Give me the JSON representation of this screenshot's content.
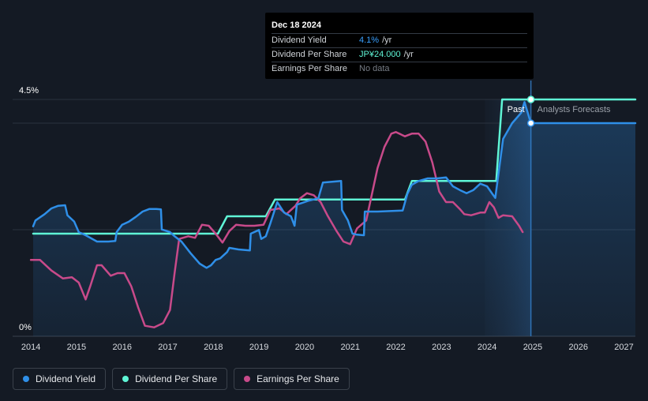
{
  "tooltip": {
    "date": "Dec 18 2024",
    "rows": [
      {
        "label": "Dividend Yield",
        "value": "4.1%",
        "suffix": "/yr"
      },
      {
        "label": "Dividend Per Share",
        "value": "JP¥24.000",
        "suffix": "/yr"
      },
      {
        "label": "Earnings Per Share",
        "value": "No data",
        "suffix": ""
      }
    ]
  },
  "chart_data": {
    "type": "line",
    "y_ticks": [
      "4.5%",
      "0%"
    ],
    "ylim": [
      0,
      4.5
    ],
    "xlim": [
      2013.6,
      2027.25
    ],
    "x_ticks": [
      "2014",
      "2015",
      "2016",
      "2017",
      "2018",
      "2019",
      "2020",
      "2021",
      "2022",
      "2023",
      "2024",
      "2025",
      "2026",
      "2027"
    ],
    "past_label": "Past",
    "forecast_label": "Analysts Forecasts",
    "divider_x": 2024.96,
    "series": [
      {
        "name": "Dividend Yield",
        "color": "#2f8fe8",
        "points": [
          [
            2014.05,
            2.09
          ],
          [
            2014.1,
            2.2
          ],
          [
            2014.3,
            2.32
          ],
          [
            2014.45,
            2.43
          ],
          [
            2014.6,
            2.48
          ],
          [
            2014.75,
            2.49
          ],
          [
            2014.8,
            2.3
          ],
          [
            2014.95,
            2.18
          ],
          [
            2015.05,
            1.98
          ],
          [
            2015.2,
            1.92
          ],
          [
            2015.45,
            1.8
          ],
          [
            2015.7,
            1.8
          ],
          [
            2015.85,
            1.81
          ],
          [
            2015.88,
            1.98
          ],
          [
            2016.0,
            2.12
          ],
          [
            2016.15,
            2.18
          ],
          [
            2016.3,
            2.27
          ],
          [
            2016.45,
            2.37
          ],
          [
            2016.6,
            2.42
          ],
          [
            2016.75,
            2.42
          ],
          [
            2016.85,
            2.41
          ],
          [
            2016.87,
            2.03
          ],
          [
            2017.05,
            1.98
          ],
          [
            2017.15,
            1.9
          ],
          [
            2017.3,
            1.8
          ],
          [
            2017.5,
            1.58
          ],
          [
            2017.7,
            1.38
          ],
          [
            2017.85,
            1.3
          ],
          [
            2017.95,
            1.35
          ],
          [
            2018.05,
            1.45
          ],
          [
            2018.15,
            1.48
          ],
          [
            2018.3,
            1.6
          ],
          [
            2018.35,
            1.68
          ],
          [
            2018.55,
            1.65
          ],
          [
            2018.8,
            1.63
          ],
          [
            2018.82,
            1.95
          ],
          [
            2019.0,
            2.02
          ],
          [
            2019.05,
            1.85
          ],
          [
            2019.15,
            1.9
          ],
          [
            2019.25,
            2.15
          ],
          [
            2019.4,
            2.55
          ],
          [
            2019.55,
            2.35
          ],
          [
            2019.7,
            2.28
          ],
          [
            2019.78,
            2.1
          ],
          [
            2019.83,
            2.5
          ],
          [
            2020.1,
            2.58
          ],
          [
            2020.3,
            2.62
          ],
          [
            2020.4,
            2.92
          ],
          [
            2020.8,
            2.95
          ],
          [
            2020.82,
            2.4
          ],
          [
            2020.95,
            2.2
          ],
          [
            2021.05,
            1.95
          ],
          [
            2021.15,
            1.93
          ],
          [
            2021.3,
            1.92
          ],
          [
            2021.32,
            2.37
          ],
          [
            2021.6,
            2.37
          ],
          [
            2022.15,
            2.39
          ],
          [
            2022.25,
            2.7
          ],
          [
            2022.35,
            2.88
          ],
          [
            2022.5,
            2.95
          ],
          [
            2022.7,
            3.0
          ],
          [
            2022.9,
            3.0
          ],
          [
            2023.1,
            3.02
          ],
          [
            2023.25,
            2.85
          ],
          [
            2023.4,
            2.78
          ],
          [
            2023.55,
            2.72
          ],
          [
            2023.7,
            2.78
          ],
          [
            2023.85,
            2.9
          ],
          [
            2024.0,
            2.85
          ],
          [
            2024.12,
            2.7
          ],
          [
            2024.18,
            2.63
          ],
          [
            2024.35,
            3.75
          ],
          [
            2024.55,
            4.05
          ],
          [
            2024.75,
            4.25
          ],
          [
            2024.82,
            4.45
          ],
          [
            2024.96,
            4.05
          ],
          [
            2025.1,
            4.05
          ],
          [
            2027.25,
            4.05
          ]
        ]
      },
      {
        "name": "Dividend Per Share",
        "color": "#5ff5d6",
        "points": [
          [
            2014.05,
            1.95
          ],
          [
            2018.1,
            1.95
          ],
          [
            2018.3,
            2.28
          ],
          [
            2019.15,
            2.28
          ],
          [
            2019.35,
            2.6
          ],
          [
            2022.2,
            2.6
          ],
          [
            2022.35,
            2.95
          ],
          [
            2024.2,
            2.95
          ],
          [
            2024.33,
            4.5
          ],
          [
            2027.25,
            4.5
          ]
        ]
      },
      {
        "name": "Earnings Per Share",
        "color": "#c84a8a",
        "points": [
          [
            2014.0,
            1.45
          ],
          [
            2014.2,
            1.45
          ],
          [
            2014.45,
            1.25
          ],
          [
            2014.7,
            1.1
          ],
          [
            2014.9,
            1.12
          ],
          [
            2015.05,
            1.02
          ],
          [
            2015.2,
            0.7
          ],
          [
            2015.3,
            0.95
          ],
          [
            2015.45,
            1.35
          ],
          [
            2015.55,
            1.35
          ],
          [
            2015.75,
            1.15
          ],
          [
            2015.9,
            1.2
          ],
          [
            2016.05,
            1.2
          ],
          [
            2016.2,
            0.95
          ],
          [
            2016.35,
            0.55
          ],
          [
            2016.5,
            0.2
          ],
          [
            2016.7,
            0.17
          ],
          [
            2016.9,
            0.25
          ],
          [
            2017.05,
            0.5
          ],
          [
            2017.15,
            1.2
          ],
          [
            2017.25,
            1.85
          ],
          [
            2017.45,
            1.9
          ],
          [
            2017.6,
            1.87
          ],
          [
            2017.75,
            2.12
          ],
          [
            2017.9,
            2.1
          ],
          [
            2018.05,
            1.95
          ],
          [
            2018.2,
            1.78
          ],
          [
            2018.35,
            2.0
          ],
          [
            2018.5,
            2.12
          ],
          [
            2018.7,
            2.1
          ],
          [
            2018.9,
            2.1
          ],
          [
            2019.1,
            2.12
          ],
          [
            2019.25,
            2.4
          ],
          [
            2019.45,
            2.43
          ],
          [
            2019.6,
            2.32
          ],
          [
            2019.8,
            2.48
          ],
          [
            2019.9,
            2.62
          ],
          [
            2020.05,
            2.72
          ],
          [
            2020.2,
            2.68
          ],
          [
            2020.35,
            2.55
          ],
          [
            2020.5,
            2.3
          ],
          [
            2020.7,
            2.0
          ],
          [
            2020.85,
            1.8
          ],
          [
            2021.0,
            1.75
          ],
          [
            2021.15,
            2.05
          ],
          [
            2021.35,
            2.2
          ],
          [
            2021.6,
            3.2
          ],
          [
            2021.75,
            3.6
          ],
          [
            2021.9,
            3.85
          ],
          [
            2022.0,
            3.88
          ],
          [
            2022.2,
            3.8
          ],
          [
            2022.35,
            3.85
          ],
          [
            2022.5,
            3.85
          ],
          [
            2022.65,
            3.7
          ],
          [
            2022.8,
            3.3
          ],
          [
            2022.95,
            2.75
          ],
          [
            2023.1,
            2.55
          ],
          [
            2023.25,
            2.55
          ],
          [
            2023.4,
            2.42
          ],
          [
            2023.5,
            2.32
          ],
          [
            2023.65,
            2.3
          ],
          [
            2023.85,
            2.35
          ],
          [
            2023.95,
            2.35
          ],
          [
            2024.05,
            2.55
          ],
          [
            2024.15,
            2.45
          ],
          [
            2024.25,
            2.25
          ],
          [
            2024.35,
            2.3
          ],
          [
            2024.55,
            2.28
          ],
          [
            2024.7,
            2.1
          ],
          [
            2024.78,
            1.98
          ]
        ]
      }
    ],
    "markers": [
      {
        "series": "Dividend Yield",
        "x": 2024.96,
        "y": 4.05
      },
      {
        "series": "Dividend Per Share",
        "x": 2024.96,
        "y": 4.5
      }
    ],
    "legend_placement": "bottom-left",
    "legend": [
      "Dividend Yield",
      "Dividend Per Share",
      "Earnings Per Share"
    ],
    "grid": true
  },
  "legend": {
    "items": [
      {
        "label": "Dividend Yield",
        "color": "#2f8fe8"
      },
      {
        "label": "Dividend Per Share",
        "color": "#5ff5d6"
      },
      {
        "label": "Earnings Per Share",
        "color": "#c84a8a"
      }
    ]
  }
}
